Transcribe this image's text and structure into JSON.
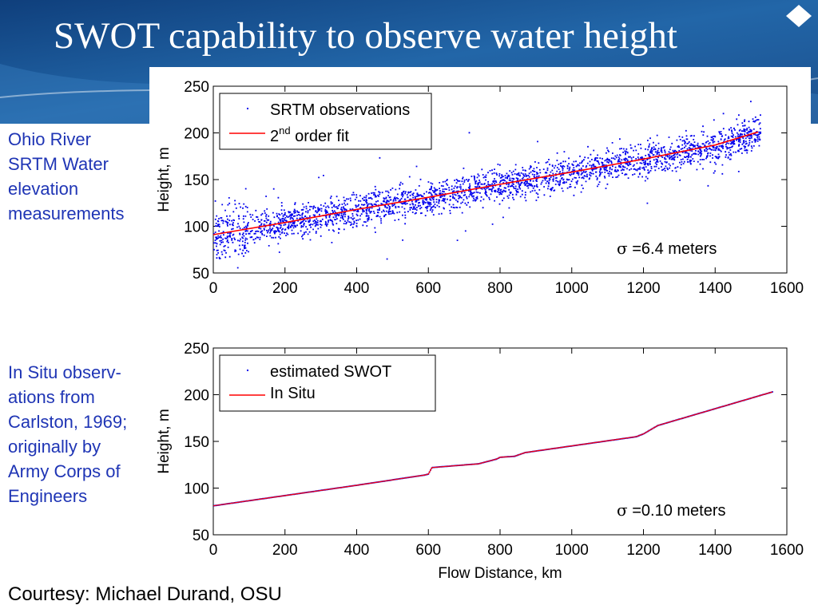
{
  "slide": {
    "title": "SWOT capability to observe water height",
    "header_color": "#1b4f8d",
    "note_top": [
      "Ohio River",
      "SRTM Water",
      "elevation",
      "measurements"
    ],
    "note_bottom": [
      "In Situ observ-",
      "ations from",
      "Carlston, 1969;",
      "originally by",
      "Army Corps of",
      "Engineers"
    ],
    "courtesy": "Courtesy: Michael Durand, OSU"
  },
  "chart_data": [
    {
      "type": "scatter",
      "ylabel": "Height, m",
      "xlabel": "",
      "xlim": [
        0,
        1600
      ],
      "ylim": [
        50,
        250
      ],
      "xticks": [
        0,
        200,
        400,
        600,
        800,
        1000,
        1200,
        1400,
        1600
      ],
      "yticks": [
        50,
        100,
        150,
        200,
        250
      ],
      "legend": [
        "SRTM observations",
        "2",
        "nd",
        " order fit"
      ],
      "legend_position": "top-left",
      "annotation_symbol": "σ",
      "annotation": " =6.4 meters",
      "scatter_color": "#0000ee",
      "fit_color": "#ff0000",
      "observations": {
        "x_range": [
          0,
          1525
        ],
        "trend_x": [
          0,
          1525
        ],
        "trend_y": [
          90,
          202
        ],
        "typical_spread_m": 6.4,
        "description_note": "dense point cloud around fit"
      },
      "series": [
        {
          "name": "2nd order fit",
          "x": [
            0,
            200,
            400,
            600,
            800,
            1000,
            1200,
            1400,
            1520
          ],
          "y": [
            91,
            104,
            118,
            131,
            145,
            158,
            172,
            187,
            201
          ]
        }
      ]
    },
    {
      "type": "scatter",
      "ylabel": "Height, m",
      "xlabel": "Flow Distance, km",
      "xlim": [
        0,
        1600
      ],
      "ylim": [
        50,
        250
      ],
      "xticks": [
        0,
        200,
        400,
        600,
        800,
        1000,
        1200,
        1400,
        1600
      ],
      "yticks": [
        50,
        100,
        150,
        200,
        250
      ],
      "legend": [
        "estimated SWOT",
        "In Situ"
      ],
      "legend_position": "top-left",
      "annotation_symbol": "σ",
      "annotation": " =0.10 meters",
      "scatter_color": "#0000ee",
      "line_color": "#ff0000",
      "series": [
        {
          "name": "In Situ",
          "x": [
            0,
            200,
            400,
            590,
            600,
            610,
            740,
            760,
            790,
            800,
            840,
            870,
            1180,
            1200,
            1240,
            1560
          ],
          "y": [
            81,
            92,
            103,
            114,
            115,
            122,
            126,
            128,
            131,
            133,
            134,
            138,
            155,
            158,
            167,
            203
          ]
        }
      ]
    }
  ]
}
